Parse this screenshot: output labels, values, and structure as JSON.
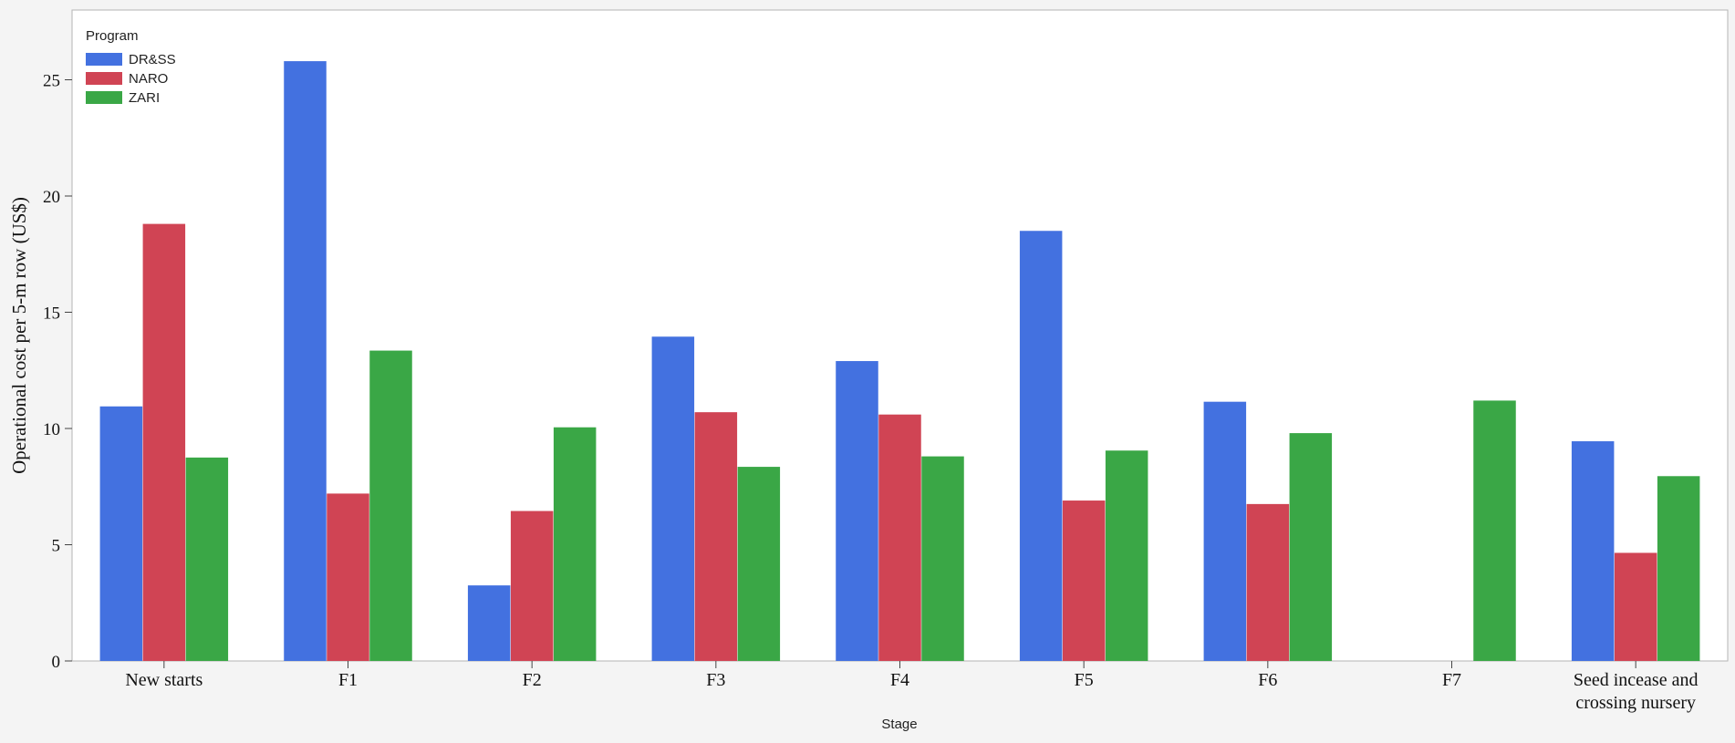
{
  "chart_data": {
    "type": "bar",
    "categories": [
      "New starts",
      "F1",
      "F2",
      "F3",
      "F4",
      "F5",
      "F6",
      "F7",
      "Seed incease and crossing nursery"
    ],
    "series": [
      {
        "name": "DR&SS",
        "color": "#4371e0",
        "values": [
          10.95,
          25.8,
          3.25,
          13.95,
          12.9,
          18.5,
          11.15,
          null,
          9.45
        ]
      },
      {
        "name": "NARO",
        "color": "#d04454",
        "values": [
          18.8,
          7.2,
          6.45,
          10.7,
          10.6,
          6.9,
          6.75,
          null,
          4.65
        ]
      },
      {
        "name": "ZARI",
        "color": "#3aa746",
        "values": [
          8.75,
          13.35,
          10.05,
          8.35,
          8.8,
          9.05,
          9.8,
          11.2,
          7.95
        ]
      }
    ],
    "legend_title": "Program",
    "legend_position": "top-left",
    "xlabel": "Stage",
    "ylabel": "Operational cost per 5-m row (US$)",
    "ylim": [
      0,
      27.5
    ],
    "yticks": [
      0,
      5,
      10,
      15,
      20,
      25
    ],
    "grid": false
  }
}
